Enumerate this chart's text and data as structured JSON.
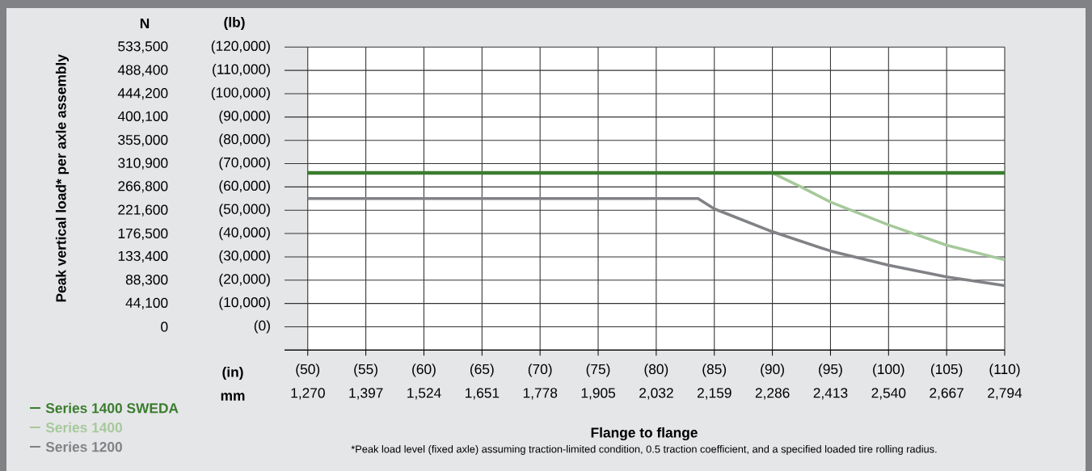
{
  "chart_data": {
    "type": "line",
    "y2label": "Peak vertical load* per axle assembly",
    "xlabel": "Flange to flange",
    "annotations": [
      "N",
      "(lb)",
      "(in)",
      "mm",
      "*Peak load level (fixed axle) assuming traction-limited condition, 0.5 traction coefficient, and a specified loaded tire rolling radius."
    ],
    "series": [
      {
        "name": "Series 1400 SWEDA",
        "color": "#3b7d2e",
        "x": [
          50,
          110
        ],
        "values": [
          66000,
          66000
        ]
      },
      {
        "name": "Series 1400",
        "color": "#a6c99b",
        "x": [
          90,
          92.5,
          95,
          100,
          105,
          110
        ],
        "values": [
          66000,
          59900,
          53500,
          43700,
          35000,
          28700
        ]
      },
      {
        "name": "Series 1200",
        "color": "#808285",
        "x": [
          50,
          83.6,
          85,
          90,
          95,
          100,
          105,
          110
        ],
        "values": [
          55000,
          55000,
          50600,
          40800,
          32500,
          26400,
          21400,
          17700
        ]
      }
    ],
    "xlim": [
      48,
      110
    ],
    "xticks": [
      {
        "value": 50,
        "label": "(50)"
      },
      {
        "value": 55,
        "label": "(55)"
      },
      {
        "value": 60,
        "label": "(60)"
      },
      {
        "value": 65,
        "label": "(65)"
      },
      {
        "value": 70,
        "label": "(70)"
      },
      {
        "value": 75,
        "label": "(75)"
      },
      {
        "value": 80,
        "label": "(80)"
      },
      {
        "value": 85,
        "label": "(85)"
      },
      {
        "value": 90,
        "label": "(90)"
      },
      {
        "value": 95,
        "label": "(95)"
      },
      {
        "value": 100,
        "label": "(100)"
      },
      {
        "value": 105,
        "label": "(105)"
      },
      {
        "value": 110,
        "label": "(110)"
      }
    ],
    "x2lim": [
      1219,
      2794
    ],
    "x2ticks": [
      {
        "value": 1270,
        "label": "1,270"
      },
      {
        "value": 1397,
        "label": "1,397"
      },
      {
        "value": 1524,
        "label": "1,524"
      },
      {
        "value": 1651,
        "label": "1,651"
      },
      {
        "value": 1778,
        "label": "1,778"
      },
      {
        "value": 1905,
        "label": "1,905"
      },
      {
        "value": 2032,
        "label": "2,032"
      },
      {
        "value": 2159,
        "label": "2,159"
      },
      {
        "value": 2286,
        "label": "2,286"
      },
      {
        "value": 2413,
        "label": "2,413"
      },
      {
        "value": 2540,
        "label": "2,540"
      },
      {
        "value": 2667,
        "label": "2,667"
      },
      {
        "value": 2794,
        "label": "2,794"
      }
    ],
    "ylim": [
      -10000,
      120000
    ],
    "yticks": [
      {
        "value": -10000,
        "label": null
      },
      {
        "value": 0,
        "label": "(0)"
      },
      {
        "value": 10000,
        "label": "(10,000)"
      },
      {
        "value": 20000,
        "label": "(20,000)"
      },
      {
        "value": 30000,
        "label": "(30,000)"
      },
      {
        "value": 40000,
        "label": "(40,000)"
      },
      {
        "value": 50000,
        "label": "(50,000)"
      },
      {
        "value": 60000,
        "label": "(60,000)"
      },
      {
        "value": 70000,
        "label": "(70,000)"
      },
      {
        "value": 80000,
        "label": "(80,000)"
      },
      {
        "value": 90000,
        "label": "(90,000)"
      },
      {
        "value": 100000,
        "label": "(100,000)"
      },
      {
        "value": 110000,
        "label": "(110,000)"
      },
      {
        "value": 120000,
        "label": "(120,000)"
      }
    ],
    "y2lim": [
      -44460,
      533500
    ],
    "y2ticks": [
      0,
      {
        "value": 44100,
        "label": "44,100"
      },
      {
        "value": 88300,
        "label": "88,300"
      },
      {
        "value": 133400,
        "label": "133,400"
      },
      {
        "value": 176500,
        "label": "176,500"
      },
      {
        "value": 221600,
        "label": "221,600"
      },
      {
        "value": 266800,
        "label": "266,800"
      },
      {
        "value": 310900,
        "label": "310,900"
      },
      {
        "value": 355000,
        "label": "355,000"
      },
      {
        "value": 400100,
        "label": "400,100"
      },
      {
        "value": 444200,
        "label": "444,200"
      },
      {
        "value": 488400,
        "label": "488,400"
      },
      {
        "value": 533500,
        "label": "533,500"
      }
    ],
    "grid": true,
    "legend": "bottom left",
    "marker": "none",
    "line_style": "solid"
  }
}
